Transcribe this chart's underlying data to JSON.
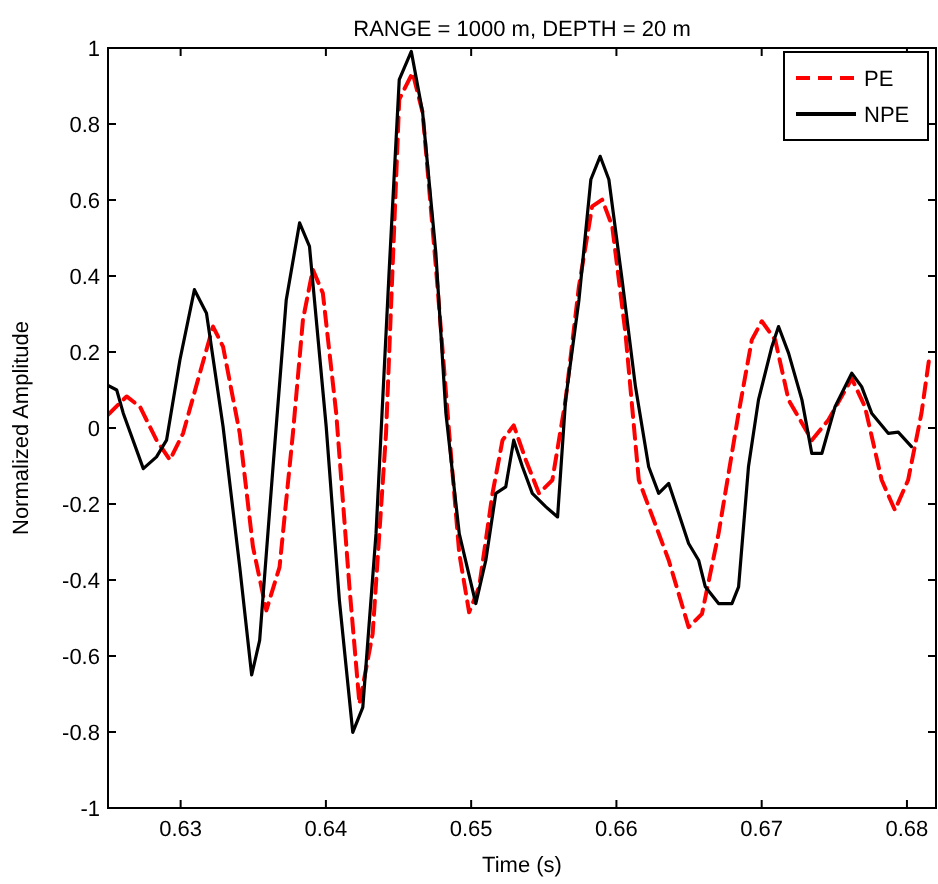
{
  "chart_data": {
    "type": "line",
    "title": "RANGE = 1000 m, DEPTH = 20 m",
    "xlabel": "Time (s)",
    "ylabel": "Normalized Amplitude",
    "xlim": [
      0.625,
      0.682
    ],
    "xticks": [
      0.63,
      0.64,
      0.65,
      0.66,
      0.67,
      0.68
    ],
    "ylim": [
      -1,
      1
    ],
    "yticks": [
      -1,
      -0.8,
      -0.6,
      -0.4,
      -0.2,
      0,
      0.2,
      0.4,
      0.6,
      0.8,
      1
    ],
    "grid": false,
    "legend": "top right",
    "series": [
      {
        "name": "PE",
        "color": "#ff0000",
        "line_style": "dashed",
        "x": [
          0.625,
          0.62628,
          0.6272,
          0.62834,
          0.62926,
          0.63017,
          0.63132,
          0.63223,
          0.63292,
          0.63407,
          0.63498,
          0.6359,
          0.63681,
          0.63773,
          0.63842,
          0.6391,
          0.63979,
          0.64071,
          0.64162,
          0.64231,
          0.64322,
          0.64414,
          0.64505,
          0.64597,
          0.64666,
          0.64757,
          0.64849,
          0.64918,
          0.64986,
          0.65055,
          0.65147,
          0.65216,
          0.65293,
          0.65376,
          0.65467,
          0.65559,
          0.6565,
          0.65742,
          0.65833,
          0.65902,
          0.65971,
          0.66062,
          0.66154,
          0.6636,
          0.66497,
          0.66589,
          0.66703,
          0.66841,
          0.66932,
          0.67001,
          0.67093,
          0.67185,
          0.67345,
          0.67459,
          0.6762,
          0.67711,
          0.67826,
          0.67917,
          0.68008,
          0.681,
          0.68155
        ],
        "values": [
          0.035,
          0.083,
          0.056,
          -0.032,
          -0.084,
          -0.014,
          0.144,
          0.267,
          0.214,
          -0.014,
          -0.313,
          -0.48,
          -0.366,
          -0.014,
          0.285,
          0.417,
          0.355,
          0.039,
          -0.418,
          -0.726,
          -0.541,
          -0.014,
          0.865,
          0.935,
          0.83,
          0.425,
          -0.014,
          -0.33,
          -0.485,
          -0.418,
          -0.172,
          -0.032,
          0.007,
          -0.084,
          -0.172,
          -0.137,
          0.074,
          0.373,
          0.583,
          0.601,
          0.531,
          0.25,
          -0.137,
          -0.348,
          -0.524,
          -0.489,
          -0.278,
          0.039,
          0.232,
          0.281,
          0.232,
          0.074,
          -0.032,
          0.021,
          0.13,
          0.056,
          -0.137,
          -0.216,
          -0.137,
          0.039,
          0.188
        ]
      },
      {
        "name": "NPE",
        "color": "#000000",
        "line_style": "solid",
        "x": [
          0.625,
          0.6256,
          0.62605,
          0.62743,
          0.62834,
          0.62903,
          0.62995,
          0.63095,
          0.63178,
          0.63292,
          0.63407,
          0.63489,
          0.63544,
          0.63636,
          0.63727,
          0.63819,
          0.63887,
          0.64002,
          0.64093,
          0.64185,
          0.64254,
          0.64345,
          0.64437,
          0.64505,
          0.64588,
          0.64666,
          0.64757,
          0.64826,
          0.64918,
          0.65032,
          0.65101,
          0.6517,
          0.65238,
          0.65293,
          0.65353,
          0.65421,
          0.65513,
          0.65595,
          0.6565,
          0.65742,
          0.65824,
          0.65888,
          0.65948,
          0.66039,
          0.66131,
          0.66222,
          0.66291,
          0.6636,
          0.66429,
          0.66497,
          0.66566,
          0.66612,
          0.66703,
          0.66795,
          0.66841,
          0.66909,
          0.66978,
          0.6707,
          0.67116,
          0.67185,
          0.67277,
          0.67345,
          0.67414,
          0.67505,
          0.6762,
          0.67688,
          0.67757,
          0.67871,
          0.6794,
          0.68031
        ],
        "values": [
          0.112,
          0.1,
          0.039,
          -0.107,
          -0.076,
          -0.032,
          0.179,
          0.364,
          0.302,
          0.004,
          -0.366,
          -0.65,
          -0.559,
          -0.102,
          0.337,
          0.54,
          0.478,
          0.004,
          -0.454,
          -0.801,
          -0.735,
          -0.278,
          0.425,
          0.917,
          0.991,
          0.83,
          0.46,
          0.039,
          -0.278,
          -0.462,
          -0.348,
          -0.172,
          -0.155,
          -0.032,
          -0.102,
          -0.172,
          -0.207,
          -0.234,
          0.074,
          0.337,
          0.654,
          0.715,
          0.654,
          0.39,
          0.109,
          -0.102,
          -0.172,
          -0.146,
          -0.225,
          -0.304,
          -0.348,
          -0.418,
          -0.462,
          -0.462,
          -0.418,
          -0.102,
          0.074,
          0.214,
          0.267,
          0.197,
          0.074,
          -0.067,
          -0.067,
          0.056,
          0.144,
          0.109,
          0.039,
          -0.014,
          -0.011,
          -0.049
        ]
      }
    ]
  }
}
